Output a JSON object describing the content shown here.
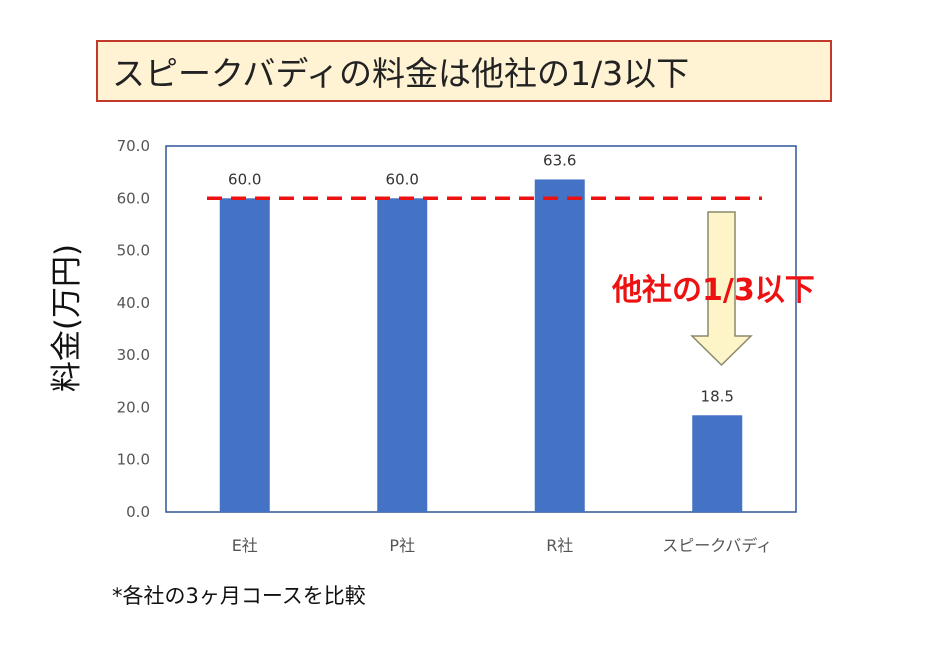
{
  "title": "スピークバディの料金は他社の1/3以下",
  "footnote": "*各社の3ヶ月コースを比較",
  "colors": {
    "bar": "#4472c4",
    "reference_line": "#ee1111",
    "arrow_fill": "#fdf4c8",
    "arrow_stroke": "#8a8a6a",
    "title_bg": "#fff3d4",
    "title_border": "#c0392b"
  },
  "chart_data": {
    "type": "bar",
    "categories": [
      "E社",
      "P社",
      "R社",
      "スピークバディ"
    ],
    "values": [
      60.0,
      60.0,
      63.6,
      18.5
    ],
    "data_labels": [
      "60.0",
      "60.0",
      "63.6",
      "18.5"
    ],
    "ylabel": "料金(万円)",
    "xlabel": "",
    "ylim": [
      0,
      70
    ],
    "yticks": [
      "0.0",
      "10.0",
      "20.0",
      "30.0",
      "40.0",
      "50.0",
      "60.0",
      "70.0"
    ],
    "grid": false,
    "legend": "none",
    "reference_line": {
      "y": 60,
      "style": "dashed"
    },
    "annotation": {
      "text": "他社の1/3以下",
      "points_to": "スピークバディ"
    }
  }
}
